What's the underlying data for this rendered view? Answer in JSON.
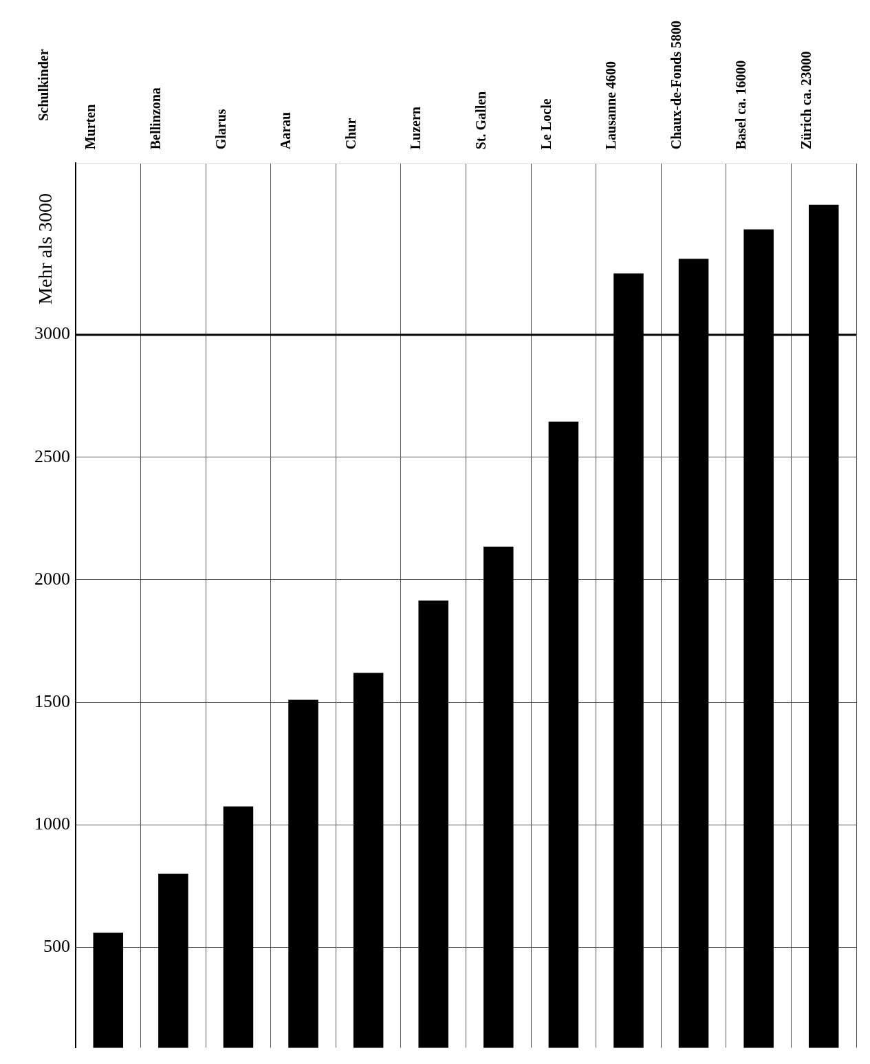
{
  "chart_data": {
    "type": "bar",
    "ylabel": "Schulkinder",
    "categories": [
      "Murten",
      "Bellinzona",
      "Glarus",
      "Aarau",
      "Chur",
      "Luzern",
      "St. Gallen",
      "Le Locle",
      "Lausanne 4600",
      "Chaux-de-Fonds 5800",
      "Basel ca. 16000",
      "Zürich ca. 23000"
    ],
    "values": [
      560,
      800,
      1075,
      1510,
      1620,
      1915,
      2135,
      2645,
      3250,
      3310,
      3430,
      3530
    ],
    "color": "#000000",
    "ylim": [
      90,
      3700
    ],
    "yticks": [
      500,
      1000,
      1500,
      2000,
      2500,
      3000
    ],
    "ref_lines": [
      {
        "axis": "y",
        "value": 3000,
        "color": "#000000"
      }
    ],
    "annotations": [
      "Mehr als 3000"
    ],
    "grid": true
  }
}
